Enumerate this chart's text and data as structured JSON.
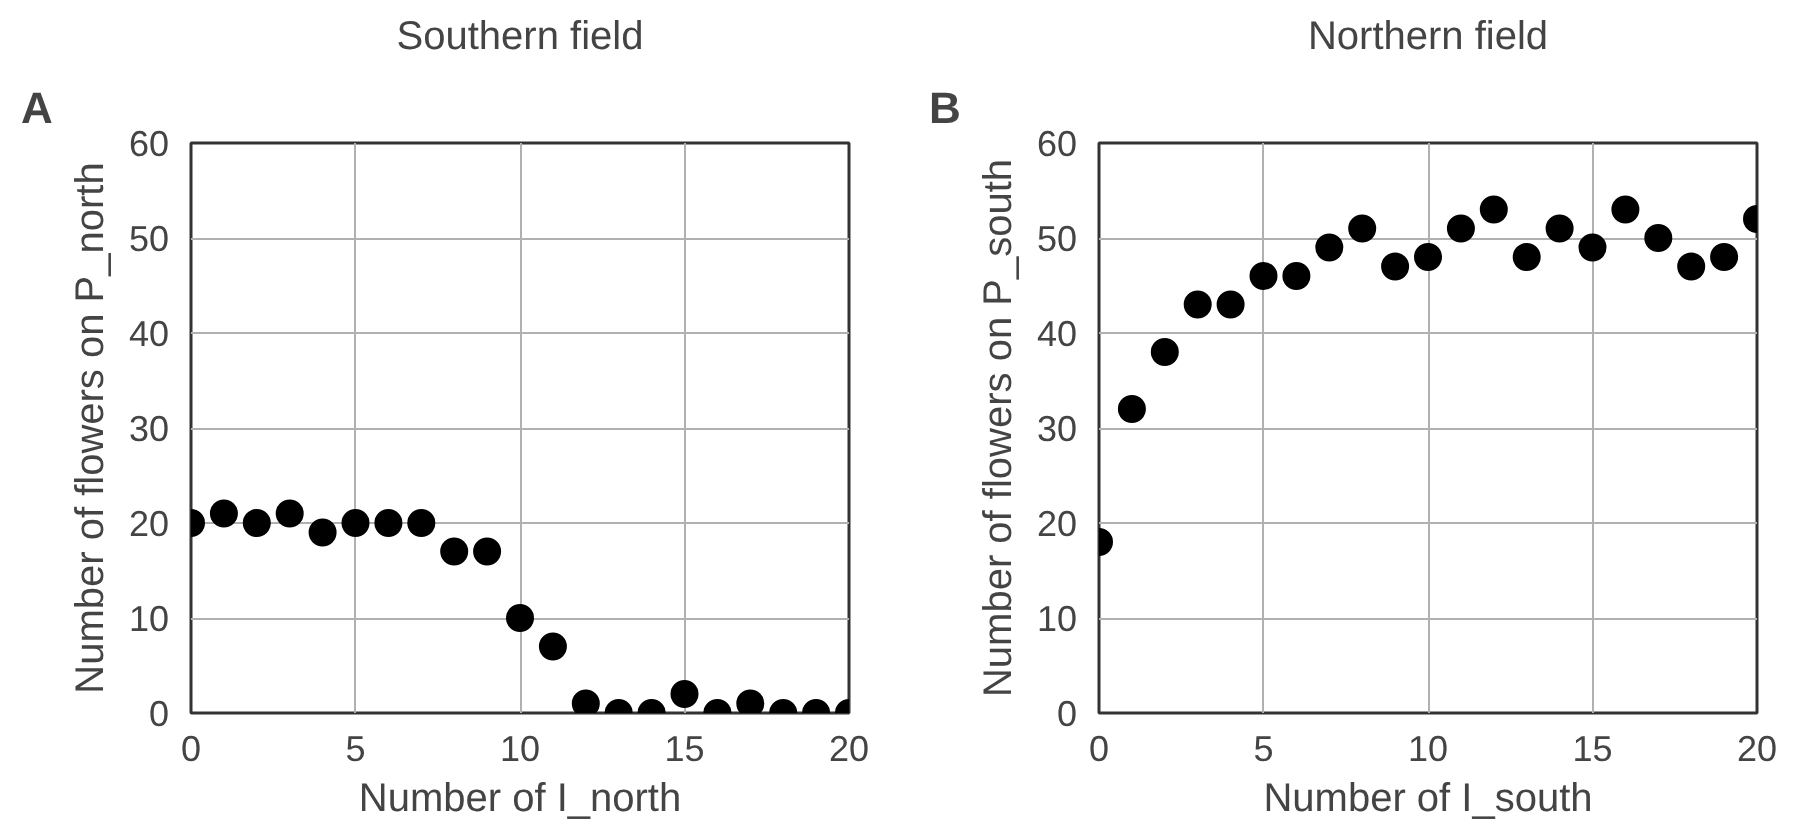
{
  "chart_data": [
    {
      "type": "scatter",
      "title": "Southern field",
      "xlabel": "Number of I_north",
      "ylabel": "Number of flowers on P_north",
      "annotations": [
        "A"
      ],
      "x": [
        0,
        1,
        2,
        3,
        4,
        5,
        6,
        7,
        8,
        9,
        10,
        11,
        12,
        13,
        14,
        15,
        16,
        17,
        18,
        19,
        20
      ],
      "series": [
        {
          "color": "#000000",
          "values": [
            20,
            21,
            20,
            21,
            19,
            20,
            20,
            20,
            17,
            17,
            10,
            7,
            1,
            0,
            0,
            2,
            0,
            1,
            0,
            0,
            0
          ]
        }
      ],
      "xlim": [
        0,
        20
      ],
      "xticks": [
        0,
        5,
        10,
        15,
        20
      ],
      "ylim": [
        0,
        60
      ],
      "yticks": [
        0,
        10,
        20,
        30,
        40,
        50,
        60
      ],
      "grid": true,
      "marker": "circle"
    },
    {
      "type": "scatter",
      "title": "Northern field",
      "xlabel": "Number of I_south",
      "ylabel": "Number of flowers on P_south",
      "annotations": [
        "B"
      ],
      "x": [
        0,
        1,
        2,
        3,
        4,
        5,
        6,
        7,
        8,
        9,
        10,
        11,
        12,
        13,
        14,
        15,
        16,
        17,
        18,
        19,
        20
      ],
      "series": [
        {
          "color": "#000000",
          "values": [
            18,
            32,
            38,
            43,
            43,
            46,
            46,
            49,
            51,
            47,
            48,
            51,
            53,
            48,
            51,
            49,
            53,
            50,
            47,
            48,
            52
          ]
        }
      ],
      "xlim": [
        0,
        20
      ],
      "xticks": [
        0,
        5,
        10,
        15,
        20
      ],
      "ylim": [
        0,
        60
      ],
      "yticks": [
        0,
        10,
        20,
        30,
        40,
        50,
        60
      ],
      "grid": true,
      "marker": "circle"
    }
  ]
}
